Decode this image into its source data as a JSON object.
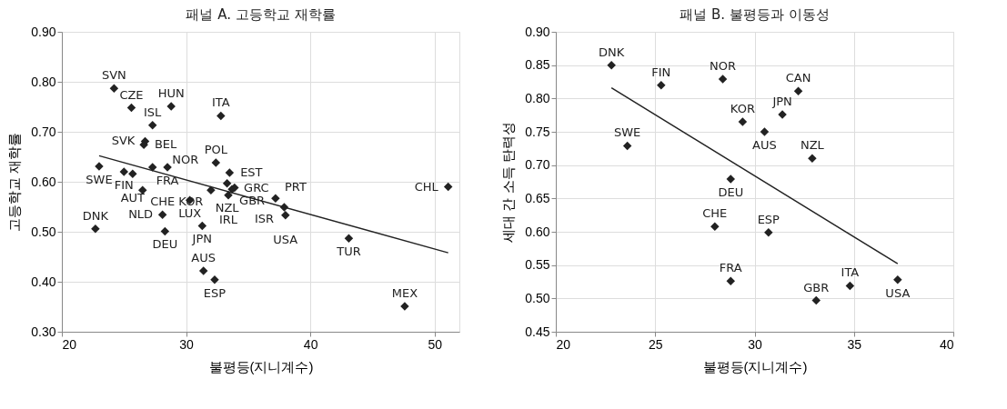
{
  "chart_data": [
    {
      "type": "scatter",
      "title": "패널 A. 고등학교 재학률",
      "xlabel": "불평등(지니계수)",
      "ylabel": "고등학교 재학률",
      "xlim": [
        20,
        52
      ],
      "xticks": [
        20,
        30,
        40,
        50
      ],
      "ylim": [
        0.3,
        0.9
      ],
      "yticks": [
        {
          "value": 0.3,
          "label": "0.30"
        },
        {
          "value": 0.4,
          "label": "0.40"
        },
        {
          "value": 0.5,
          "label": "0.50"
        },
        {
          "value": 0.6,
          "label": "0.60"
        },
        {
          "value": 0.7,
          "label": "0.70"
        },
        {
          "value": 0.8,
          "label": "0.80"
        },
        {
          "value": 0.9,
          "label": "0.90"
        }
      ],
      "grid": true,
      "series": [
        {
          "color": "#222222",
          "marker": "diamond",
          "x": [
            24.2,
            25.6,
            28.8,
            27.3,
            26.7,
            26.6,
            32.8,
            23.0,
            25.0,
            25.7,
            27.3,
            28.5,
            26.5,
            30.3,
            32.0,
            31.3,
            32.4,
            33.5,
            33.3,
            33.9,
            33.7,
            33.4,
            37.2,
            37.9,
            38.0,
            43.1,
            51.1,
            47.6,
            22.7,
            28.1,
            28.3,
            31.4,
            32.3
          ],
          "values": [
            0.787,
            0.748,
            0.751,
            0.713,
            0.681,
            0.674,
            0.732,
            0.631,
            0.62,
            0.616,
            0.629,
            0.629,
            0.583,
            0.563,
            0.583,
            0.512,
            0.638,
            0.618,
            0.597,
            0.588,
            0.585,
            0.573,
            0.567,
            0.549,
            0.533,
            0.487,
            0.59,
            0.351,
            0.506,
            0.534,
            0.501,
            0.422,
            0.404
          ],
          "value_labels": [
            "SVN",
            "CZE",
            "HUN",
            "ISL",
            "SVK",
            "BEL",
            "ITA",
            "SWE",
            "FIN",
            "AUT",
            "NOR",
            "FRA",
            "CHE",
            "LUX",
            "KOR",
            "JPN",
            "POL",
            "EST",
            "NZL",
            "GRC",
            "GBR",
            "IRL",
            "PRT",
            "ISR",
            "USA",
            "TUR",
            "CHL",
            "MEX",
            "DNK",
            "NLD",
            "DEU",
            "AUS",
            "ESP"
          ]
        },
        {
          "type": "line",
          "color": "#222222",
          "x": [
            23.0,
            51.1
          ],
          "values": [
            0.652,
            0.458
          ]
        }
      ]
    },
    {
      "type": "scatter",
      "title": "패널 B. 불평등과 이동성",
      "xlabel": "불평등(지니계수)",
      "ylabel": "세대 간 소득 탄력성",
      "xlim": [
        20,
        40
      ],
      "xticks": [
        20,
        25,
        30,
        35,
        40
      ],
      "ylim": [
        0.45,
        0.9
      ],
      "yticks": [
        {
          "value": 0.45,
          "label": "0.45"
        },
        {
          "value": 0.5,
          "label": "0.50"
        },
        {
          "value": 0.55,
          "label": "0.55"
        },
        {
          "value": 0.6,
          "label": "0.60"
        },
        {
          "value": 0.65,
          "label": "0.65"
        },
        {
          "value": 0.7,
          "label": "0.70"
        },
        {
          "value": 0.75,
          "label": "0.75"
        },
        {
          "value": 0.8,
          "label": "0.80"
        },
        {
          "value": 0.85,
          "label": "0.85"
        },
        {
          "value": 0.9,
          "label": "0.90"
        }
      ],
      "grid": true,
      "series": [
        {
          "color": "#222222",
          "marker": "diamond",
          "x": [
            22.8,
            25.3,
            28.4,
            23.6,
            28.8,
            28.0,
            28.8,
            32.2,
            31.4,
            29.4,
            30.5,
            32.9,
            30.7,
            33.1,
            34.8,
            37.2
          ],
          "values": [
            0.85,
            0.82,
            0.829,
            0.729,
            0.679,
            0.608,
            0.526,
            0.811,
            0.776,
            0.765,
            0.75,
            0.71,
            0.599,
            0.497,
            0.519,
            0.528
          ],
          "value_labels": [
            "DNK",
            "FIN",
            "NOR",
            "SWE",
            "DEU",
            "CHE",
            "FRA",
            "CAN",
            "JPN",
            "KOR",
            "AUS",
            "NZL",
            "ESP",
            "GBR",
            "ITA",
            "USA"
          ]
        },
        {
          "type": "line",
          "color": "#222222",
          "x": [
            22.8,
            37.2
          ],
          "values": [
            0.816,
            0.552
          ]
        }
      ]
    }
  ]
}
